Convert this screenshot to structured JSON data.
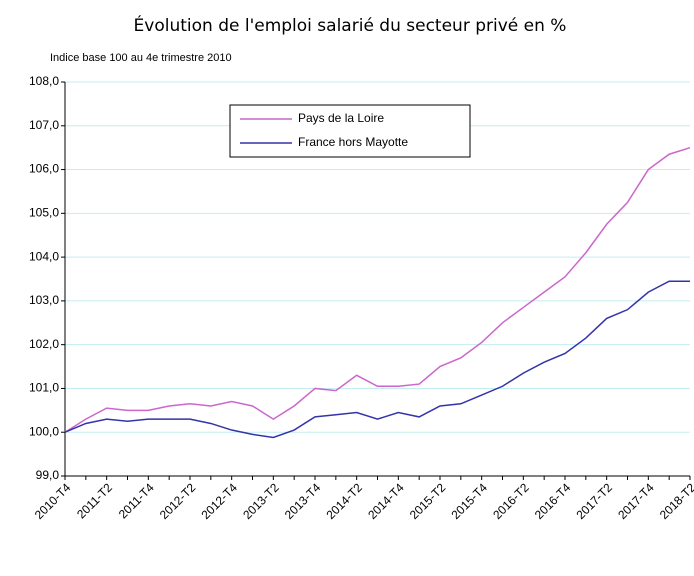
{
  "chart_data": {
    "type": "line",
    "title": "Évolution de l'emploi salarié du secteur privé en %",
    "subtitle": "Indice base 100 au 4e trimestre 2010",
    "categories": [
      "2010-T4",
      null,
      "2011-T2",
      null,
      "2011-T4",
      null,
      "2012-T2",
      null,
      "2012-T4",
      null,
      "2013-T2",
      null,
      "2013-T4",
      null,
      "2014-T2",
      null,
      "2014-T4",
      null,
      "2015-T2",
      null,
      "2015-T4",
      null,
      "2016-T2",
      null,
      "2016-T4",
      null,
      "2017-T2",
      null,
      "2017-T4",
      null,
      "2018-T2"
    ],
    "series": [
      {
        "name": "Pays de la Loire",
        "color": "#cc66cc",
        "values": [
          100.0,
          100.3,
          100.55,
          100.5,
          100.5,
          100.6,
          100.65,
          100.6,
          100.7,
          100.6,
          100.3,
          100.6,
          101.0,
          100.95,
          101.3,
          101.05,
          101.05,
          101.1,
          101.5,
          101.7,
          102.05,
          102.5,
          102.85,
          103.2,
          103.55,
          104.1,
          104.75,
          105.25,
          106.0,
          106.35,
          106.5
        ]
      },
      {
        "name": "France hors Mayotte",
        "color": "#3333aa",
        "values": [
          100.0,
          100.2,
          100.3,
          100.25,
          100.3,
          100.3,
          100.3,
          100.2,
          100.05,
          99.95,
          99.88,
          100.05,
          100.35,
          100.4,
          100.45,
          100.3,
          100.45,
          100.35,
          100.6,
          100.65,
          100.85,
          101.05,
          101.35,
          101.6,
          101.8,
          102.15,
          102.6,
          102.8,
          103.2,
          103.45,
          103.45
        ]
      }
    ],
    "ylim": [
      99,
      108
    ],
    "yticks": [
      {
        "value": 99,
        "label": "99,0"
      },
      {
        "value": 100,
        "label": "100,0"
      },
      {
        "value": 101,
        "label": "101,0"
      },
      {
        "value": 102,
        "label": "102,0"
      },
      {
        "value": 103,
        "label": "103,0"
      },
      {
        "value": 104,
        "label": "104,0"
      },
      {
        "value": 105,
        "label": "105,0"
      },
      {
        "value": 106,
        "label": "106,0"
      },
      {
        "value": 107,
        "label": "107,0"
      },
      {
        "value": 108,
        "label": "108,0"
      }
    ],
    "grid": true,
    "legend": "upper center"
  }
}
